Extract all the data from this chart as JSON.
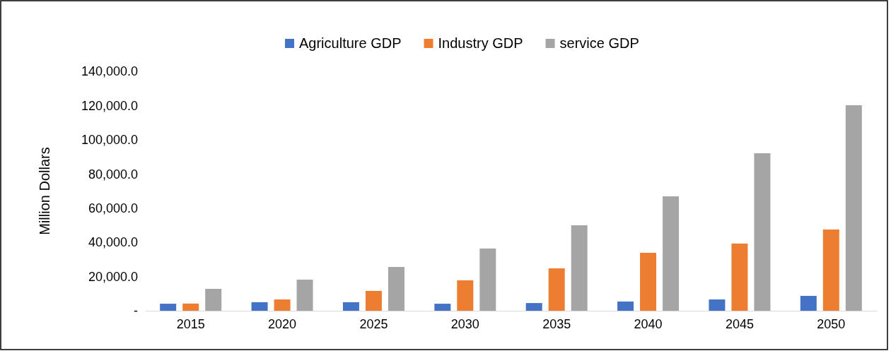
{
  "chart_data": {
    "type": "bar",
    "ylabel": "Million Dollars",
    "categories": [
      "2015",
      "2020",
      "2025",
      "2030",
      "2035",
      "2040",
      "2045",
      "2050"
    ],
    "series": [
      {
        "name": "Agriculture GDP",
        "color": "#4472c4",
        "values": [
          4100,
          5000,
          5000,
          4100,
          4500,
          5400,
          6600,
          8700
        ]
      },
      {
        "name": "Industry GDP",
        "color": "#ed7d31",
        "values": [
          4200,
          6600,
          11600,
          17800,
          24800,
          33900,
          39300,
          47500
        ]
      },
      {
        "name": "service GDP",
        "color": "#a5a5a5",
        "values": [
          12800,
          18200,
          25600,
          36400,
          50000,
          66900,
          92100,
          120200
        ]
      }
    ],
    "ylim": [
      0,
      140000
    ],
    "yticks": [
      {
        "value": 0,
        "label": "-"
      },
      {
        "value": 20000,
        "label": "20,000.0"
      },
      {
        "value": 40000,
        "label": "40,000.0"
      },
      {
        "value": 60000,
        "label": "60,000.0"
      },
      {
        "value": 80000,
        "label": "80,000.0"
      },
      {
        "value": 100000,
        "label": "100,000.0"
      },
      {
        "value": 120000,
        "label": "120,000.0"
      },
      {
        "value": 140000,
        "label": "140,000.0"
      }
    ],
    "grid": false,
    "legend": "top"
  }
}
